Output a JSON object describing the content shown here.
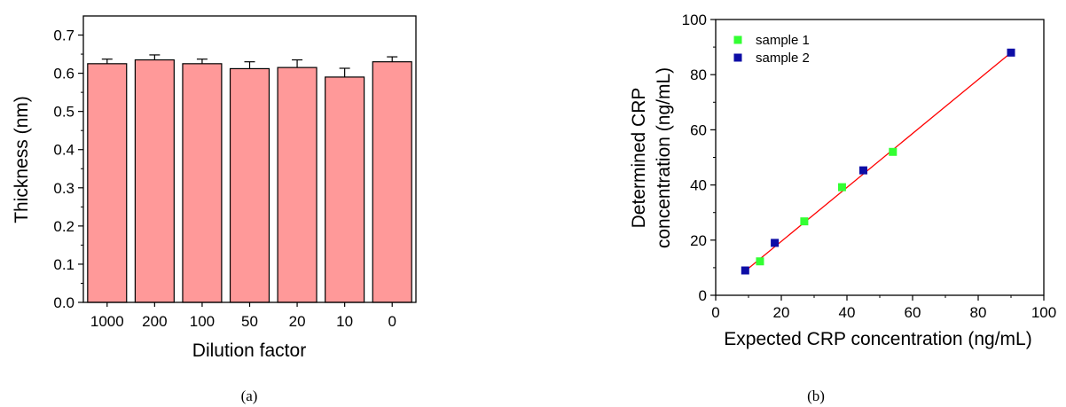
{
  "chart_data": [
    {
      "type": "bar",
      "categories": [
        "1000",
        "200",
        "100",
        "50",
        "20",
        "10",
        "0"
      ],
      "values": [
        0.625,
        0.635,
        0.625,
        0.612,
        0.615,
        0.59,
        0.63
      ],
      "error": [
        0.012,
        0.013,
        0.012,
        0.018,
        0.02,
        0.023,
        0.013
      ],
      "xlabel": "Dilution factor",
      "ylabel": "Thickness (nm)",
      "ylim": [
        0,
        0.75
      ],
      "yticks": [
        "0.0",
        "0.1",
        "0.2",
        "0.3",
        "0.4",
        "0.5",
        "0.6",
        "0.7"
      ],
      "bar_color": "#ff9999",
      "caption": "(a)"
    },
    {
      "type": "scatter",
      "xlabel": "Expected CRP concentration (ng/mL)",
      "ylabel": [
        "Determined CRP",
        "concentration (ng/mL)"
      ],
      "xlim": [
        0,
        100
      ],
      "ylim": [
        0,
        100
      ],
      "xticks": [
        "0",
        "20",
        "40",
        "60",
        "80",
        "100"
      ],
      "yticks": [
        "0",
        "20",
        "40",
        "60",
        "80",
        "100"
      ],
      "series": [
        {
          "name": "sample 1",
          "color": "#33ff33",
          "x": [
            13.5,
            27,
            38.5,
            54
          ],
          "y": [
            12.3,
            26.8,
            39.2,
            52
          ]
        },
        {
          "name": "sample 2",
          "color": "#0d0da6",
          "x": [
            9,
            18,
            45,
            90
          ],
          "y": [
            9,
            19,
            45.3,
            88
          ]
        }
      ],
      "fit_line": {
        "color": "#ff0000",
        "x": [
          9,
          90
        ],
        "y": [
          8.8,
          88
        ]
      },
      "legend_position": "top-left",
      "caption": "(b)"
    }
  ]
}
